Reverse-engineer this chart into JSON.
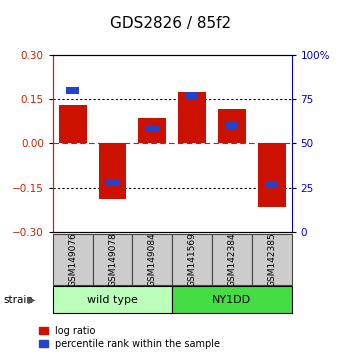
{
  "title": "GDS2826 / 85f2",
  "samples": [
    "GSM149076",
    "GSM149078",
    "GSM149084",
    "GSM141569",
    "GSM142384",
    "GSM142385"
  ],
  "log_ratios": [
    0.13,
    -0.19,
    0.085,
    0.175,
    0.115,
    -0.215
  ],
  "percentile_ranks": [
    80,
    28,
    58,
    77,
    60,
    27
  ],
  "groups": [
    {
      "label": "wild type",
      "indices": [
        0,
        1,
        2
      ],
      "color": "#bbffbb"
    },
    {
      "label": "NY1DD",
      "indices": [
        3,
        4,
        5
      ],
      "color": "#44dd44"
    }
  ],
  "bar_width": 0.7,
  "ylim_left": [
    -0.3,
    0.3
  ],
  "ylim_right": [
    0,
    100
  ],
  "yticks_left": [
    -0.3,
    -0.15,
    0,
    0.15,
    0.3
  ],
  "yticks_right": [
    0,
    25,
    50,
    75,
    100
  ],
  "hlines_dotted": [
    -0.15,
    0.15
  ],
  "hline_dashed": 0,
  "red_bar_color": "#cc1100",
  "blue_marker_color": "#2244cc",
  "sample_box_color": "#cccccc",
  "sample_box_edge_color": "#444444",
  "left_tick_color": "#cc2200",
  "right_tick_color": "#0000cc",
  "title_fontsize": 11,
  "tick_fontsize": 7.5,
  "legend_fontsize": 7
}
